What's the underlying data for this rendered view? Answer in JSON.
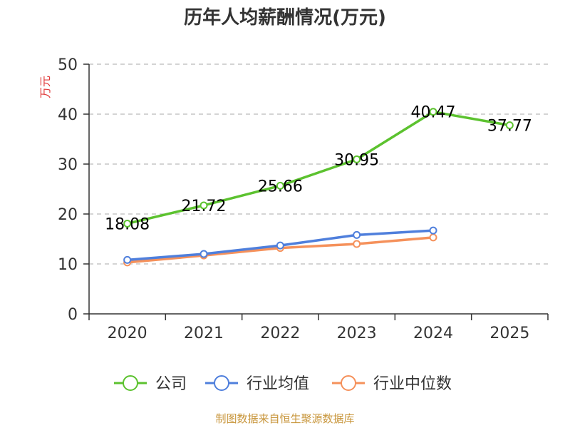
{
  "chart_data": {
    "type": "line",
    "title": "历年人均薪酬情况(万元)",
    "ylabel": "万元",
    "xlabel": "",
    "categories": [
      "2020",
      "2021",
      "2022",
      "2023",
      "2024",
      "2025"
    ],
    "ylim": [
      0,
      50
    ],
    "yticks": [
      0,
      10,
      20,
      30,
      40,
      50
    ],
    "grid": true,
    "legend_position": "bottom",
    "series": [
      {
        "name": "公司",
        "color": "#5cc22f",
        "values": [
          18.08,
          21.72,
          25.66,
          30.95,
          40.47,
          37.77
        ],
        "labels": [
          "18.08",
          "21.72",
          "25.66",
          "30.95",
          "40.47",
          "37.77"
        ]
      },
      {
        "name": "行业均值",
        "color": "#4f7fdc",
        "values": [
          10.8,
          12.0,
          13.7,
          15.8,
          16.7,
          null
        ]
      },
      {
        "name": "行业中位数",
        "color": "#f5915b",
        "values": [
          10.3,
          11.7,
          13.2,
          14.0,
          15.3,
          null
        ]
      }
    ]
  },
  "colors": {
    "axis": "#333333",
    "grid": "#bbbbbb",
    "ylabel": "#e03a3a",
    "source": "#c8963c"
  },
  "source_text": "制图数据来自恒生聚源数据库"
}
